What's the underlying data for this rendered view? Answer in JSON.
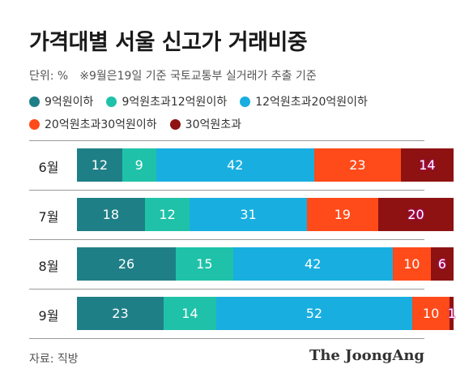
{
  "header": {
    "title": "가격대별 서울 신고가 거래비중",
    "unit_note": "단위: %",
    "source_note": "※9월은19일 기준 국토교통부 실거래가 추출 기준"
  },
  "chart_data": {
    "type": "bar",
    "orientation": "horizontal",
    "stacked": true,
    "percent": true,
    "title": "가격대별 서울 신고가 거래비중",
    "categories": [
      "6월",
      "7월",
      "8월",
      "9월"
    ],
    "series": [
      {
        "name": "9억원이하",
        "color": "#1f7f86",
        "values": [
          12,
          18,
          26,
          23
        ]
      },
      {
        "name": "9억원초과12억원이하",
        "color": "#1fc2a8",
        "values": [
          9,
          12,
          15,
          14
        ]
      },
      {
        "name": "12억원초과20억원이하",
        "color": "#19aee0",
        "values": [
          42,
          31,
          42,
          52
        ]
      },
      {
        "name": "20억원초과30억원이하",
        "color": "#ff4a1a",
        "values": [
          23,
          19,
          10,
          10
        ]
      },
      {
        "name": "30억원초과",
        "color": "#8e1212",
        "values": [
          14,
          20,
          6,
          1
        ]
      }
    ],
    "legend_position": "top",
    "grid": false
  },
  "footer": {
    "source": "자료: 직방",
    "logo_text": "The JoongAng"
  }
}
